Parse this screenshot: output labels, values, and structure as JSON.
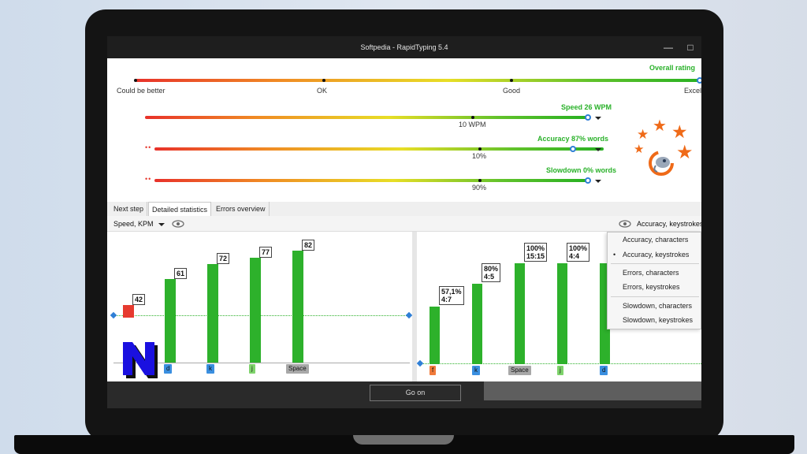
{
  "window": {
    "title": "Softpedia - RapidTyping 5.4",
    "min_icon": "minimize-icon",
    "max_icon": "maximize-icon"
  },
  "overall": {
    "label": "Overall rating",
    "ticks": [
      "Could be better",
      "OK",
      "Good",
      "Excel"
    ],
    "level": 1.0
  },
  "metrics": [
    {
      "name": "Speed 26 WPM",
      "mark": "10 WPM",
      "level": 0.98
    },
    {
      "name": "Accuracy 87% words",
      "mark": "10%",
      "level": 0.86
    },
    {
      "name": "Slowdown 0% words",
      "mark": "90%",
      "level": 0.98
    }
  ],
  "tabs": [
    "Next step",
    "Detailed statistics",
    "Errors overview"
  ],
  "active_tab": "Detailed statistics",
  "toolbar": {
    "left_select": "Speed, KPM",
    "right_select": "Accuracy, keystrokes",
    "eye_icon": "eye-icon"
  },
  "left_chart": {
    "type": "bar",
    "title": "",
    "ymax": 82,
    "bars": [
      {
        "key": "",
        "value": 42,
        "label": "42",
        "color": "#e63a2f",
        "key_color": "#3a8fe0"
      },
      {
        "key": "d",
        "value": 61,
        "label": "61",
        "color": "#2db12b",
        "key_color": "#3a8fe0"
      },
      {
        "key": "k",
        "value": 72,
        "label": "72",
        "color": "#2db12b",
        "key_color": "#3a8fe0"
      },
      {
        "key": "j",
        "value": 77,
        "label": "77",
        "color": "#2db12b",
        "key_color": "#7ed36b"
      },
      {
        "key": "Space",
        "value": 82,
        "label": "82",
        "color": "#2db12b",
        "key_color": "#a8a8a8"
      }
    ]
  },
  "right_chart": {
    "type": "bar",
    "bars": [
      {
        "key": "f",
        "value": 57.1,
        "label": [
          "57,1%",
          "4:7"
        ],
        "key_color": "#f07a3a"
      },
      {
        "key": "k",
        "value": 80,
        "label": [
          "80%",
          "4:5"
        ],
        "key_color": "#3a8fe0"
      },
      {
        "key": "Space",
        "value": 100,
        "label": [
          "100%",
          "15:15"
        ],
        "key_color": "#a8a8a8"
      },
      {
        "key": "j",
        "value": 100,
        "label": [
          "100%",
          "4:4"
        ],
        "key_color": "#7ed36b"
      },
      {
        "key": "d",
        "value": 100,
        "label": [
          "",
          ""
        ],
        "key_color": "#3a8fe0"
      }
    ]
  },
  "menu": {
    "items": [
      "Accuracy, characters",
      "Accuracy, keystrokes",
      "Errors, characters",
      "Errors, keystrokes",
      "Slowdown, characters",
      "Slowdown, keystrokes"
    ],
    "selected": "Accuracy, keystrokes"
  },
  "footer": {
    "go_button": "Go on"
  },
  "colors": {
    "accent_green": "#2db12b",
    "accent_blue": "#2f7fd6",
    "star_orange": "#ef6a18"
  }
}
